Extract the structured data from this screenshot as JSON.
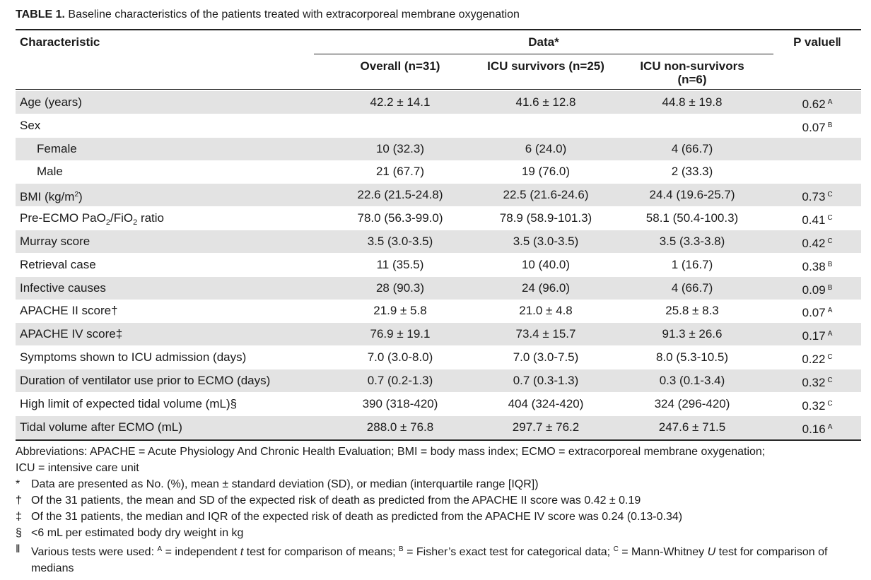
{
  "caption": {
    "label": "TABLE 1.",
    "text": "Baseline characteristics of the patients treated with extracorporeal membrane oxygenation"
  },
  "header": {
    "characteristic": "Characteristic",
    "data": "Data*",
    "pvalue": "P value‖",
    "overall": "Overall (n=31)",
    "survivors": "ICU survivors (n=25)",
    "nonsurvivors_line1": "ICU non-survivors",
    "nonsurvivors_line2": "(n=6)"
  },
  "rows": [
    {
      "label": "Age (years)",
      "overall": "42.2 ± 14.1",
      "survivors": "41.6 ± 12.8",
      "nonsurvivors": "44.8 ± 19.8",
      "p": "0.62",
      "test": "A"
    },
    {
      "label": "Sex",
      "overall": "",
      "survivors": "",
      "nonsurvivors": "",
      "p": "0.07",
      "test": "B"
    },
    {
      "label": "Female",
      "overall": "10 (32.3)",
      "survivors": "6 (24.0)",
      "nonsurvivors": "4 (66.7)",
      "p": "",
      "test": ""
    },
    {
      "label": "Male",
      "overall": "21 (67.7)",
      "survivors": "19 (76.0)",
      "nonsurvivors": "2 (33.3)",
      "p": "",
      "test": ""
    },
    {
      "label_pre": "BMI (kg/m",
      "label_sup": "2",
      "label_post": ")",
      "overall": "22.6 (21.5-24.8)",
      "survivors": "22.5 (21.6-24.6)",
      "nonsurvivors": "24.4 (19.6-25.7)",
      "p": "0.73",
      "test": "C"
    },
    {
      "label_pre": "Pre-ECMO PaO",
      "label_sub1": "2",
      "label_mid": "/FiO",
      "label_sub2": "2",
      "label_post": " ratio",
      "overall": "78.0 (56.3-99.0)",
      "survivors": "78.9 (58.9-101.3)",
      "nonsurvivors": "58.1 (50.4-100.3)",
      "p": "0.41",
      "test": "C"
    },
    {
      "label": "Murray score",
      "overall": "3.5 (3.0-3.5)",
      "survivors": "3.5 (3.0-3.5)",
      "nonsurvivors": "3.5 (3.3-3.8)",
      "p": "0.42",
      "test": "C"
    },
    {
      "label": "Retrieval case",
      "overall": "11 (35.5)",
      "survivors": "10 (40.0)",
      "nonsurvivors": "1 (16.7)",
      "p": "0.38",
      "test": "B"
    },
    {
      "label": "Infective causes",
      "overall": "28 (90.3)",
      "survivors": "24 (96.0)",
      "nonsurvivors": "4 (66.7)",
      "p": "0.09",
      "test": "B"
    },
    {
      "label": "APACHE II score†",
      "overall": "21.9 ± 5.8",
      "survivors": "21.0 ± 4.8",
      "nonsurvivors": "25.8 ± 8.3",
      "p": "0.07",
      "test": "A"
    },
    {
      "label": "APACHE IV score‡",
      "overall": "76.9 ± 19.1",
      "survivors": "73.4 ± 15.7",
      "nonsurvivors": "91.3 ± 26.6",
      "p": "0.17",
      "test": "A"
    },
    {
      "label": "Symptoms shown to ICU admission (days)",
      "overall": "7.0 (3.0-8.0)",
      "survivors": "7.0 (3.0-7.5)",
      "nonsurvivors": "8.0 (5.3-10.5)",
      "p": "0.22",
      "test": "C"
    },
    {
      "label": "Duration of ventilator use prior to ECMO (days)",
      "overall": "0.7 (0.2-1.3)",
      "survivors": "0.7 (0.3-1.3)",
      "nonsurvivors": "0.3 (0.1-3.4)",
      "p": "0.32",
      "test": "C"
    },
    {
      "label": "High limit of expected tidal volume (mL)§",
      "overall": "390 (318-420)",
      "survivors": "404 (324-420)",
      "nonsurvivors": "324 (296-420)",
      "p": "0.32",
      "test": "C"
    },
    {
      "label": "Tidal volume after ECMO (mL)",
      "overall": "288.0 ± 76.8",
      "survivors": "297.7 ± 76.2",
      "nonsurvivors": "247.6 ± 71.5",
      "p": "0.16",
      "test": "A"
    }
  ],
  "notes": {
    "abbreviations_line1": "Abbreviations: APACHE = Acute Physiology And Chronic Health Evaluation; BMI = body mass index; ECMO = extracorporeal membrane oxygenation;",
    "abbreviations_line2": "ICU = intensive care unit",
    "star_mark": "*",
    "star_text": "Data are presented as No. (%), mean ± standard deviation (SD), or median (interquartile range [IQR])",
    "dagger_mark": "†",
    "dagger_text": "Of the 31 patients, the mean and SD of the expected risk of death as predicted from the APACHE II score was 0.42 ± 0.19",
    "ddagger_mark": "‡",
    "ddagger_text": "Of the 31 patients, the median and IQR of the expected risk of death as predicted from the APACHE IV score was 0.24 (0.13-0.34)",
    "section_mark": "§",
    "section_text": "<6 mL per estimated body dry weight in kg",
    "para_mark": "‖",
    "para_t1": "Various tests were used: ",
    "para_supA": "A",
    "para_t2": " = independent ",
    "para_t_italic": "t",
    "para_t3": " test for comparison of means; ",
    "para_supB": "B",
    "para_t4": " = Fisher’s exact test for categorical data; ",
    "para_supC": "C",
    "para_t5": " = Mann-Whitney ",
    "para_u_italic": "U",
    "para_t6": " test for comparison of medians"
  }
}
